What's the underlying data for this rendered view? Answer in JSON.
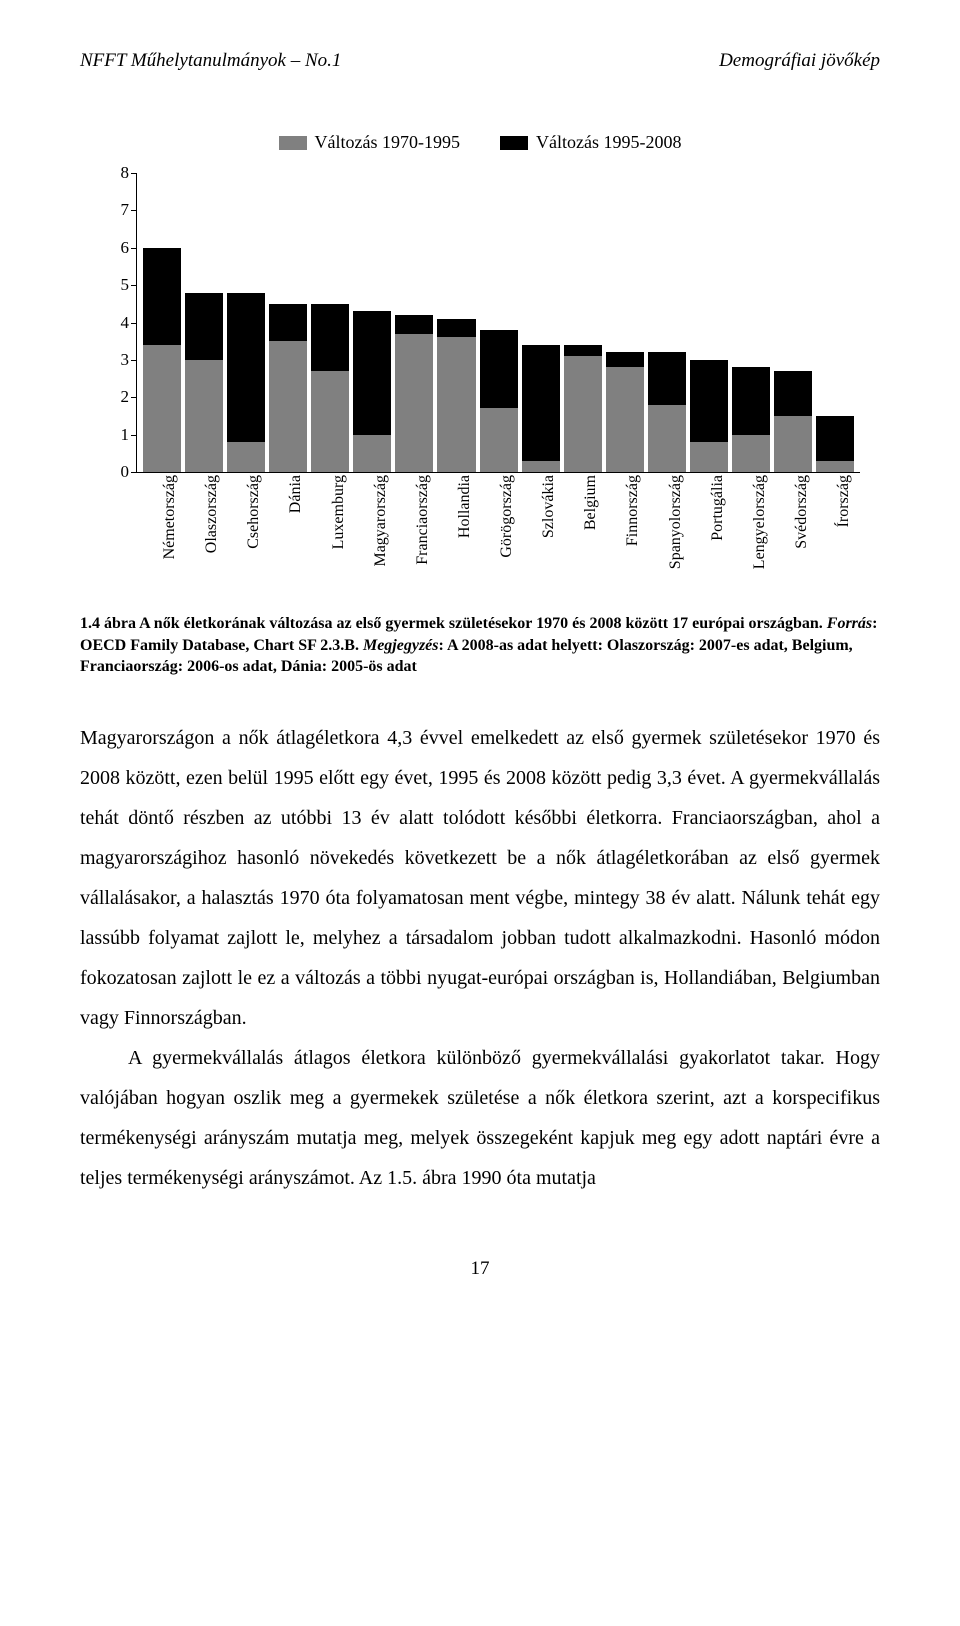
{
  "header": {
    "left": "NFFT Műhelytanulmányok – No.1",
    "right": "Demográfiai jövőkép"
  },
  "chart": {
    "type": "stacked-bar",
    "legend": [
      {
        "label": "Változás 1970-1995",
        "color": "#808080"
      },
      {
        "label": "Változás 1995-2008",
        "color": "#000000"
      }
    ],
    "ylim": [
      0,
      8
    ],
    "ytick_step": 1,
    "bar_colors": {
      "lower": "#808080",
      "upper": "#000000"
    },
    "background_color": "#ffffff",
    "categories": [
      "Németország",
      "Olaszország",
      "Csehország",
      "Dánia",
      "Luxemburg",
      "Magyarország",
      "Franciaország",
      "Hollandia",
      "Görögország",
      "Szlovákia",
      "Belgium",
      "Finnország",
      "Spanyolország",
      "Portugália",
      "Lengyelország",
      "Svédország",
      "Írország"
    ],
    "series_1970_1995": [
      3.4,
      3.0,
      0.8,
      3.5,
      2.7,
      1.0,
      3.7,
      3.6,
      1.7,
      0.3,
      3.1,
      2.8,
      1.8,
      0.8,
      1.0,
      1.5,
      0.3
    ],
    "series_1995_2008": [
      2.6,
      1.8,
      4.0,
      1.0,
      1.8,
      3.3,
      0.5,
      0.5,
      2.1,
      3.1,
      0.3,
      0.4,
      1.4,
      2.2,
      1.8,
      1.2,
      1.2
    ],
    "label_fontsize": 16
  },
  "caption": {
    "line1": "1.4 ábra A nők életkorának változása az első gyermek születésekor 1970 és 2008 között 17 európai országban. ",
    "source_label": "Forrás",
    "source_text": ": OECD Family Database, Chart SF 2.3.B. ",
    "note_label": "Megjegyzés",
    "note_text": ": A 2008-as adat helyett: Olaszország: 2007-es adat, Belgium, Franciaország: 2006-os adat, Dánia: 2005-ös adat"
  },
  "paragraphs": {
    "p1": "Magyarországon a nők átlagéletkora 4,3 évvel emelkedett az első gyermek születésekor 1970 és 2008 között, ezen belül 1995 előtt egy évet, 1995 és 2008 között pedig 3,3 évet. A gyermekvállalás tehát döntő részben az utóbbi 13 év alatt tolódott későbbi életkorra. Franciaországban, ahol a magyarországihoz hasonló növekedés következett be a nők átlagéletkorában az első gyermek vállalásakor, a halasztás 1970 óta folyamatosan ment végbe, mintegy 38 év alatt. Nálunk tehát egy lassúbb folyamat zajlott le, melyhez a társadalom jobban tudott alkalmazkodni. Hasonló módon fokozatosan zajlott le ez a változás a többi nyugat-európai országban is, Hollandiában, Belgiumban vagy Finnországban.",
    "p2": "A gyermekvállalás átlagos életkora különböző gyermekvállalási gyakorlatot takar. Hogy valójában hogyan oszlik meg a gyermekek születése a nők életkora szerint, azt a korspecifikus termékenységi arányszám mutatja meg, melyek összegeként kapjuk meg egy adott naptári évre a teljes termékenységi arányszámot. Az 1.5. ábra 1990 óta mutatja"
  },
  "page_number": "17"
}
